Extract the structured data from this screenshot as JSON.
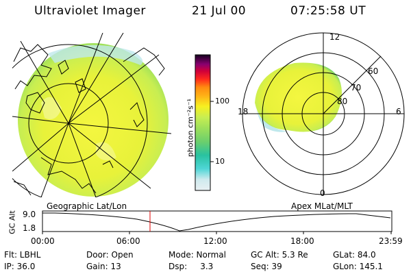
{
  "header": {
    "title": "Ultraviolet Imager",
    "date": "21 Jul 00",
    "time": "07:25:58 UT"
  },
  "colorbar": {
    "label": "photon cm⁻²s⁻¹",
    "ticks": [
      "100",
      "10"
    ],
    "colors": [
      "#dfeef0",
      "#bfe8ec",
      "#4fd6d6",
      "#29c2c2",
      "#6ccf6c",
      "#9ee05a",
      "#c8ee52",
      "#e8f23a",
      "#f7f020",
      "#ffd21a",
      "#ffb016",
      "#ff8c10",
      "#ff3a1c",
      "#e00020",
      "#b00060",
      "#7a0070",
      "#3a0040",
      "#1a0020"
    ]
  },
  "polar_plot": {
    "mlt_labels": [
      "12",
      "18",
      "6",
      "0"
    ],
    "mlat_labels": [
      "60",
      "70",
      "80"
    ],
    "caption": "Apex MLat/MLT"
  },
  "geo_plot": {
    "caption": "Geographic Lat/Lon"
  },
  "altitude_plot": {
    "ylabel": "GC Alt",
    "yticks": [
      "9.0",
      "1.8"
    ],
    "xticks": [
      "00:00",
      "06:00",
      "12:00",
      "18:00",
      "23:59"
    ]
  },
  "info": {
    "row1": [
      "Flt: LBHL",
      "Door: Open",
      "Mode: Normal",
      "GC Alt: 5.3 Re",
      "GLat: 84.0"
    ],
    "row2": [
      "IP: 36.0",
      "Gain: 13",
      "Dsp:     3.3",
      "Seq: 39",
      "GLon: 145.1"
    ]
  },
  "colors": {
    "image_fill": "#e8f23a",
    "image_edge": "#9ee05a",
    "image_rim": "#4fd6d6",
    "marker": "#e00000"
  }
}
